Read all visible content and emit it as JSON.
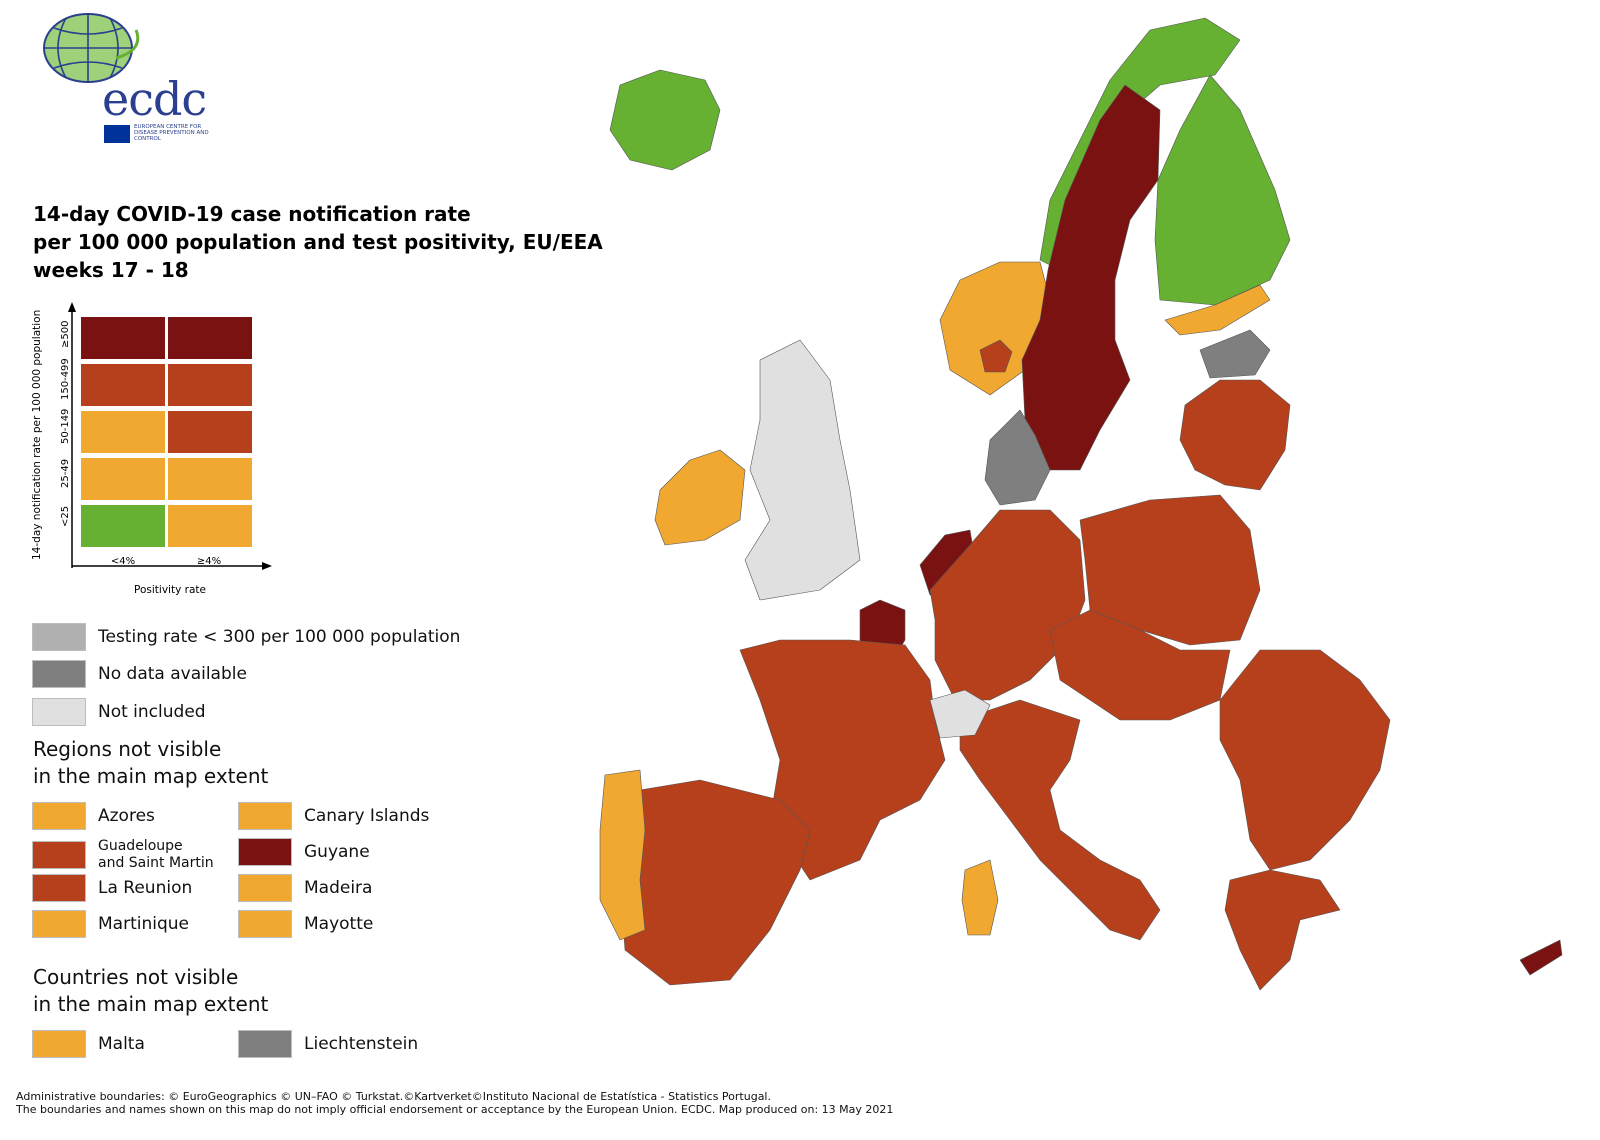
{
  "logo": {
    "text": "ecdc",
    "subtitle": "EUROPEAN CENTRE FOR DISEASE PREVENTION AND CONTROL"
  },
  "title": "14-day COVID-19 case notification rate\nper 100 000 population and test positivity, EU/EEA\nweeks 17 - 18",
  "colors": {
    "green": "#66b032",
    "yellow": "#f0a830",
    "red": "#b5401b",
    "darkred": "#7a1212",
    "grey_testing": "#b0b0b0",
    "grey_nodata": "#7f7f7f",
    "not_included": "#e0e0e0",
    "sea": "#ffffff"
  },
  "matrix": {
    "y_axis_label": "14-day notification rate per 100 000 population",
    "x_axis_label": "Positivity rate",
    "rate_bands": [
      "≥500",
      "150-499",
      "50-149",
      "25-49",
      "<25"
    ],
    "positivity_bands": [
      "<4%",
      "≥4%"
    ],
    "cells": [
      [
        "darkred",
        "darkred"
      ],
      [
        "red",
        "red"
      ],
      [
        "yellow",
        "red"
      ],
      [
        "yellow",
        "yellow"
      ],
      [
        "green",
        "yellow"
      ]
    ]
  },
  "legend": {
    "testing": {
      "label": "Testing rate < 300 per 100 000 population",
      "color": "grey_testing"
    },
    "nodata": {
      "label": "No data available",
      "color": "grey_nodata"
    },
    "notincluded": {
      "label": "Not included",
      "color": "not_included"
    }
  },
  "regions_heading": "Regions not visible\nin the main map extent",
  "regions": [
    {
      "label": "Azores",
      "color": "yellow"
    },
    {
      "label": "Canary Islands",
      "color": "yellow"
    },
    {
      "label": "Guadeloupe\nand Saint Martin",
      "color": "red"
    },
    {
      "label": "Guyane",
      "color": "darkred"
    },
    {
      "label": "La Reunion",
      "color": "red"
    },
    {
      "label": "Madeira",
      "color": "yellow"
    },
    {
      "label": "Martinique",
      "color": "yellow"
    },
    {
      "label": "Mayotte",
      "color": "yellow"
    }
  ],
  "countries_heading": "Countries not visible\nin the main map extent",
  "countries": [
    {
      "label": "Malta",
      "color": "yellow"
    },
    {
      "label": "Liechtenstein",
      "color": "grey_nodata"
    }
  ],
  "footer": {
    "line1": "Administrative boundaries: © EuroGeographics © UN–FAO © Turkstat.©Kartverket©Instituto Nacional de Estatística - Statistics Portugal.",
    "line2": "The boundaries and names shown on this map do not imply official endorsement or acceptance by the European Union. ECDC. Map produced on: 13 May 2021"
  },
  "map_regions": [
    {
      "name": "Iceland",
      "category": "green"
    },
    {
      "name": "Norway north",
      "category": "green"
    },
    {
      "name": "Norway south",
      "category": "yellow"
    },
    {
      "name": "Oslo",
      "category": "red"
    },
    {
      "name": "Sweden",
      "category": "darkred"
    },
    {
      "name": "Finland",
      "category": "green"
    },
    {
      "name": "Finland south",
      "category": "yellow"
    },
    {
      "name": "Estonia",
      "category": "grey_nodata"
    },
    {
      "name": "Latvia/Lithuania",
      "category": "red"
    },
    {
      "name": "Denmark",
      "category": "grey_nodata"
    },
    {
      "name": "Ireland",
      "category": "yellow"
    },
    {
      "name": "Netherlands",
      "category": "darkred"
    },
    {
      "name": "Belgium/Luxembourg",
      "category": "darkred"
    },
    {
      "name": "France",
      "category": "red"
    },
    {
      "name": "Germany",
      "category": "red"
    },
    {
      "name": "Poland",
      "category": "red"
    },
    {
      "name": "Czechia",
      "category": "red"
    },
    {
      "name": "Italy",
      "category": "red"
    },
    {
      "name": "Spain",
      "category": "red"
    },
    {
      "name": "Portugal",
      "category": "yellow"
    },
    {
      "name": "Romania/Bulgaria",
      "category": "red"
    },
    {
      "name": "Greece",
      "category": "red"
    },
    {
      "name": "Cyprus",
      "category": "darkred"
    },
    {
      "name": "Sardinia",
      "category": "yellow"
    },
    {
      "name": "Switzerland",
      "category": "not_included"
    },
    {
      "name": "United Kingdom",
      "category": "not_included"
    }
  ]
}
